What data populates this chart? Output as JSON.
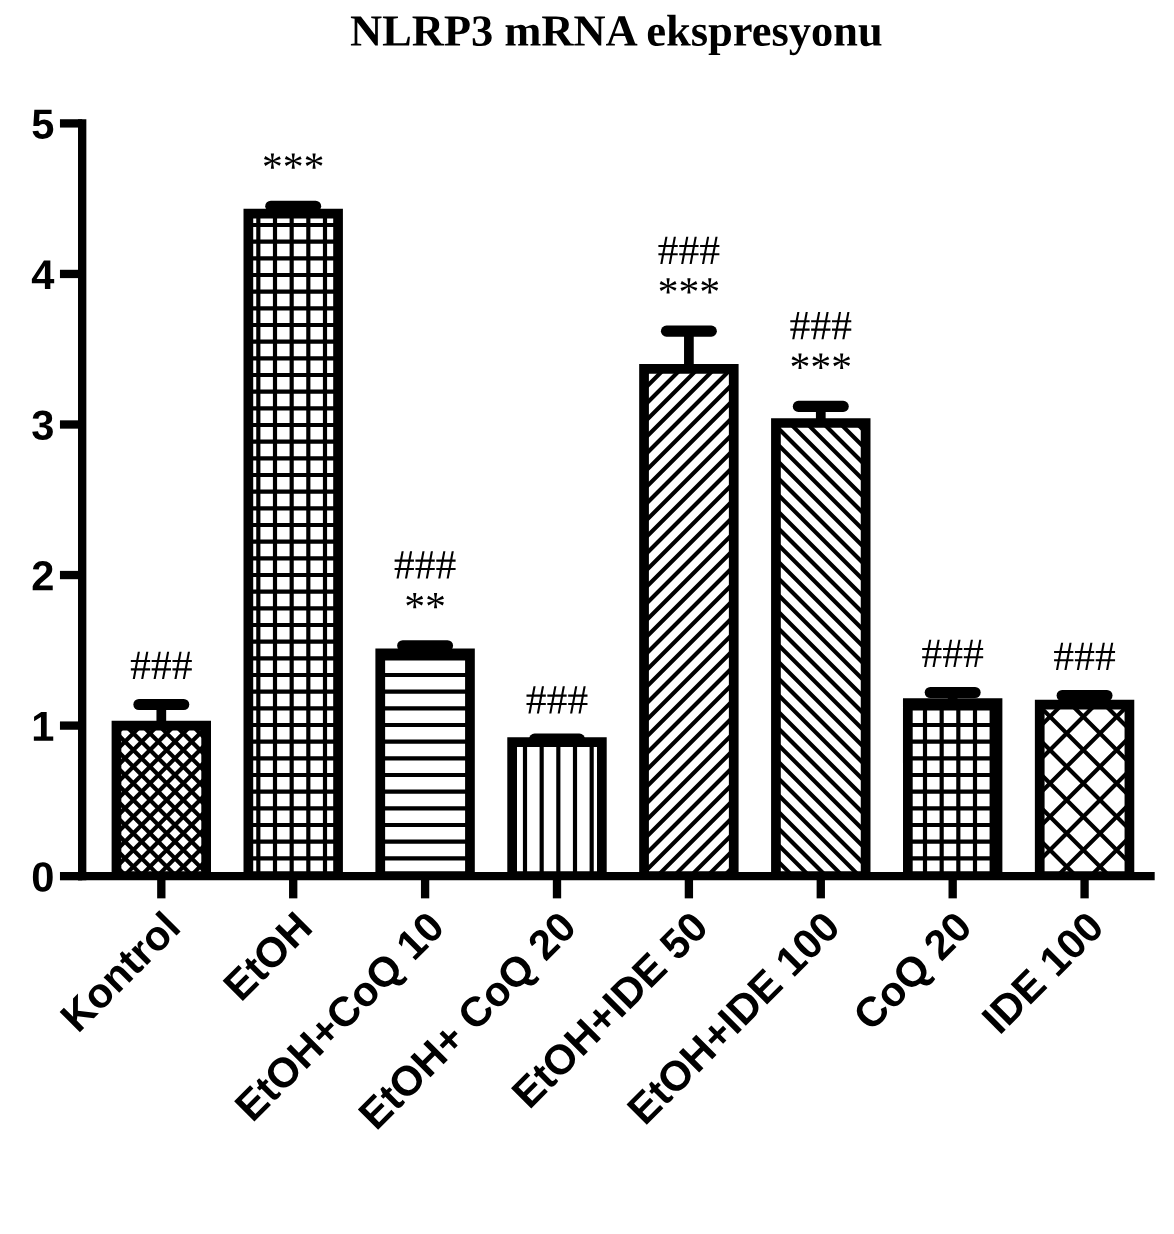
{
  "chart_data": {
    "type": "bar",
    "title": "NLRP3 mRNA ekspresyonu",
    "categories": [
      "Kontrol",
      "EtOH",
      "EtOH+CoQ 10",
      "EtOH+ CoQ 20",
      "EtOH+IDE 50",
      "EtOH+IDE 100",
      "CoQ 20",
      "IDE 100"
    ],
    "values": [
      1.0,
      4.4,
      1.48,
      0.89,
      3.37,
      3.01,
      1.15,
      1.14
    ],
    "errors": [
      [
        1.0,
        1.14
      ],
      [
        4.4,
        4.45
      ],
      [
        1.48,
        1.53
      ],
      [
        0.89,
        0.91
      ],
      [
        3.37,
        3.62
      ],
      [
        3.01,
        3.12
      ],
      [
        1.15,
        1.22
      ],
      [
        1.14,
        1.2
      ]
    ],
    "ylim": [
      0,
      5
    ],
    "yticks": [
      0,
      1,
      2,
      3,
      4,
      5
    ],
    "grid": false,
    "legend": false,
    "annotations": [
      {
        "text": "###",
        "x": "Kontrol",
        "y": 1.14
      },
      {
        "text": "***",
        "x": "EtOH",
        "y": 4.45
      },
      {
        "text": "**",
        "x": "EtOH+CoQ 10",
        "y": 1.53
      },
      {
        "text": "###",
        "x": "EtOH+CoQ 10",
        "y": 1.53
      },
      {
        "text": "###",
        "x": "EtOH+ CoQ 20",
        "y": 0.91
      },
      {
        "text": "***",
        "x": "EtOH+IDE 50",
        "y": 3.62
      },
      {
        "text": "###",
        "x": "EtOH+IDE 50",
        "y": 3.62
      },
      {
        "text": "***",
        "x": "EtOH+IDE 100",
        "y": 3.12
      },
      {
        "text": "###",
        "x": "EtOH+IDE 100",
        "y": 3.12
      },
      {
        "text": "###",
        "x": "CoQ 20",
        "y": 1.22
      },
      {
        "text": "###",
        "x": "IDE 100",
        "y": 1.2
      }
    ]
  }
}
